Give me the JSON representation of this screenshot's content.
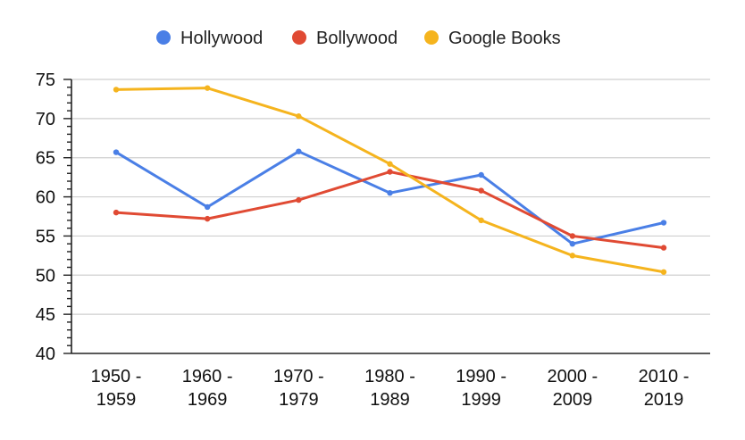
{
  "chart_data": {
    "type": "line",
    "title": "",
    "xlabel": "",
    "ylabel": "",
    "categories": [
      "1950 - 1959",
      "1960 - 1969",
      "1970 - 1979",
      "1980 - 1989",
      "1990 - 1999",
      "2000 - 2009",
      "2010 - 2019"
    ],
    "category_lines": [
      [
        "1950 -",
        "1959"
      ],
      [
        "1960 -",
        "1969"
      ],
      [
        "1970 -",
        "1979"
      ],
      [
        "1980 -",
        "1989"
      ],
      [
        "1990 -",
        "1999"
      ],
      [
        "2000 -",
        "2009"
      ],
      [
        "2010 -",
        "2019"
      ]
    ],
    "ylim": [
      40,
      75
    ],
    "yticks": [
      40,
      45,
      50,
      55,
      60,
      65,
      70,
      75
    ],
    "grid": true,
    "legend_position": "top-center",
    "series": [
      {
        "name": "Hollywood",
        "color": "#4a7fe6",
        "values": [
          65.7,
          58.7,
          65.8,
          60.5,
          62.8,
          54.0,
          56.7
        ]
      },
      {
        "name": "Bollywood",
        "color": "#e04a33",
        "values": [
          58.0,
          57.2,
          59.6,
          63.2,
          60.8,
          55.0,
          53.5
        ]
      },
      {
        "name": "Google Books",
        "color": "#f5b41e",
        "values": [
          73.7,
          73.9,
          70.3,
          64.2,
          57.0,
          52.5,
          50.4
        ]
      }
    ]
  }
}
